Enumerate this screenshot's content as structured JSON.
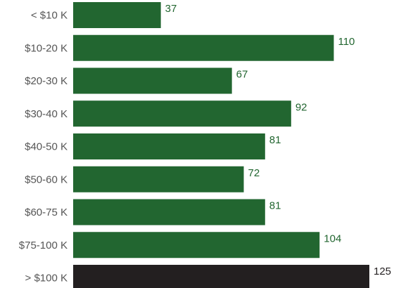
{
  "chart_data": {
    "type": "bar",
    "orientation": "horizontal",
    "categories": [
      "< $10 K",
      "$10-20 K",
      "$20-30 K",
      "$30-40 K",
      "$40-50 K",
      "$50-60 K",
      "$60-75 K",
      "$75-100 K",
      "> $100 K"
    ],
    "values": [
      37,
      110,
      67,
      92,
      81,
      72,
      81,
      104,
      125
    ],
    "highlight_index": 8,
    "bar_color": "#226630",
    "highlight_color": "#231f20",
    "label_color": "#555555",
    "xlim": [
      0,
      125
    ],
    "grid": false,
    "legend": "none"
  }
}
